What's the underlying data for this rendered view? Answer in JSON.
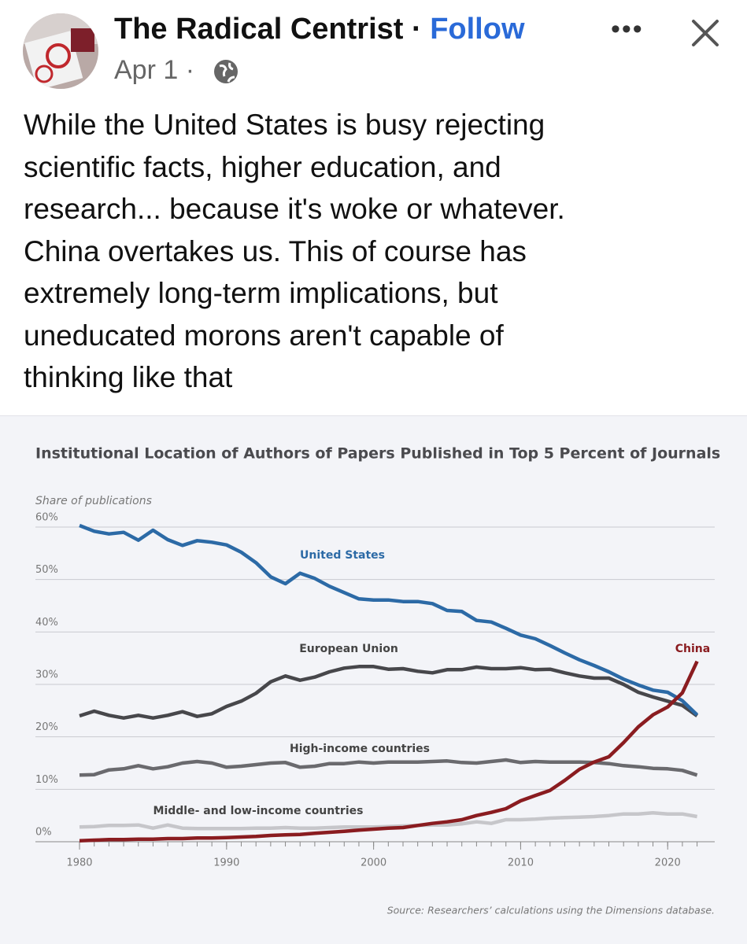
{
  "header": {
    "name": "The Radical Centrist",
    "separator": "·",
    "follow": "Follow",
    "date": "Apr 1"
  },
  "post": {
    "lines": [
      "While the United States is busy rejecting",
      "scientific facts, higher education, and",
      "research... because it's woke or whatever.",
      "China overtakes us. This of course has",
      "extremely long-term implications, but",
      "uneducated morons aren't capable of",
      "thinking like that"
    ]
  },
  "chart_data": {
    "type": "line",
    "title": "Institutional Location of Authors of Papers Published in Top 5 Percent of Journals",
    "y_label": "Share of publications",
    "source": "Source: Researchers’ calculations using the Dimensions database.",
    "x": [
      1980,
      1981,
      1982,
      1983,
      1984,
      1985,
      1986,
      1987,
      1988,
      1989,
      1990,
      1991,
      1992,
      1993,
      1994,
      1995,
      1996,
      1997,
      1998,
      1999,
      2000,
      2001,
      2002,
      2003,
      2004,
      2005,
      2006,
      2007,
      2008,
      2009,
      2010,
      2011,
      2012,
      2013,
      2014,
      2015,
      2016,
      2017,
      2018,
      2019,
      2020,
      2021,
      2022
    ],
    "series": [
      {
        "name": "United States",
        "color": "#2c6aa6",
        "values": [
          60.3,
          59.2,
          58.7,
          59.0,
          57.5,
          59.4,
          57.6,
          56.5,
          57.4,
          57.1,
          56.6,
          55.2,
          53.2,
          50.5,
          49.2,
          51.2,
          50.2,
          48.7,
          47.5,
          46.3,
          46.1,
          46.1,
          45.8,
          45.8,
          45.4,
          44.1,
          43.9,
          42.2,
          41.9,
          40.7,
          39.4,
          38.7,
          37.4,
          36.0,
          34.7,
          33.6,
          32.4,
          31.0,
          29.9,
          28.9,
          28.5,
          26.9,
          24.2
        ]
      },
      {
        "name": "European Union",
        "color": "#47474b",
        "values": [
          24.0,
          24.9,
          24.1,
          23.6,
          24.1,
          23.6,
          24.1,
          24.8,
          23.9,
          24.4,
          25.8,
          26.8,
          28.3,
          30.5,
          31.6,
          30.8,
          31.4,
          32.4,
          33.1,
          33.4,
          33.4,
          32.9,
          33.0,
          32.5,
          32.2,
          32.8,
          32.8,
          33.3,
          33.0,
          33.0,
          33.2,
          32.8,
          32.9,
          32.2,
          31.6,
          31.2,
          31.2,
          30.0,
          28.5,
          27.6,
          26.8,
          26.0,
          24.0
        ]
      },
      {
        "name": "China",
        "color": "#8a1c20",
        "values": [
          0.2,
          0.3,
          0.4,
          0.4,
          0.5,
          0.5,
          0.6,
          0.6,
          0.7,
          0.7,
          0.8,
          0.9,
          1.0,
          1.2,
          1.3,
          1.4,
          1.6,
          1.8,
          2.0,
          2.2,
          2.4,
          2.6,
          2.7,
          3.1,
          3.5,
          3.8,
          4.2,
          5.0,
          5.6,
          6.3,
          7.8,
          8.8,
          9.8,
          11.7,
          13.8,
          15.2,
          16.2,
          18.9,
          21.9,
          24.2,
          25.7,
          28.4,
          34.4
        ]
      },
      {
        "name": "High-income countries",
        "color": "#6a6a6e",
        "values": [
          12.7,
          12.8,
          13.7,
          13.9,
          14.5,
          13.9,
          14.3,
          15.0,
          15.3,
          15.0,
          14.2,
          14.4,
          14.7,
          15.0,
          15.1,
          14.2,
          14.4,
          14.9,
          14.9,
          15.2,
          15.0,
          15.2,
          15.2,
          15.2,
          15.3,
          15.4,
          15.1,
          15.0,
          15.3,
          15.6,
          15.1,
          15.3,
          15.2,
          15.2,
          15.2,
          15.1,
          14.9,
          14.5,
          14.3,
          14.0,
          13.9,
          13.6,
          12.7
        ]
      },
      {
        "name": "Middle- and low-income countries",
        "color": "#c6c6ca",
        "values": [
          2.8,
          2.9,
          3.1,
          3.1,
          3.2,
          2.6,
          3.2,
          2.6,
          2.5,
          2.5,
          2.5,
          2.5,
          2.6,
          2.6,
          2.7,
          2.6,
          2.6,
          2.7,
          2.8,
          2.8,
          2.8,
          2.9,
          3.0,
          3.1,
          3.2,
          3.2,
          3.4,
          3.8,
          3.5,
          4.2,
          4.2,
          4.3,
          4.5,
          4.6,
          4.7,
          4.8,
          5.0,
          5.3,
          5.3,
          5.5,
          5.3,
          5.3,
          4.8
        ]
      }
    ],
    "xlim": [
      1977,
      2023.2
    ],
    "xticks": [
      1980,
      1990,
      2000,
      2010,
      2020
    ],
    "ylim": [
      0,
      60
    ],
    "yticks": [
      {
        "value": 0,
        "label": "0%"
      },
      {
        "value": 10,
        "label": "10%"
      },
      {
        "value": 20,
        "label": "20%"
      },
      {
        "value": 30,
        "label": "30%"
      },
      {
        "value": 40,
        "label": "40%"
      },
      {
        "value": 50,
        "label": "50%"
      },
      {
        "value": 60,
        "label": "60%"
      }
    ],
    "grid": true
  }
}
